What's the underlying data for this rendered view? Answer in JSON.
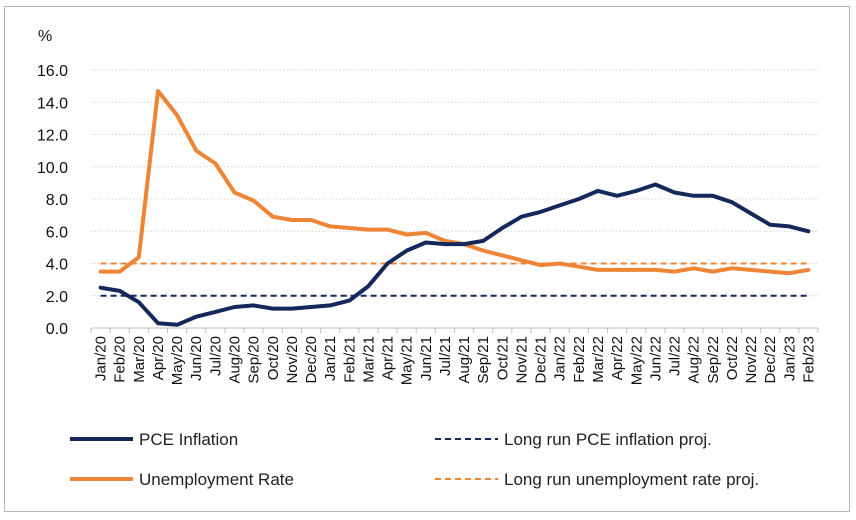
{
  "chart_data": {
    "type": "line",
    "y_unit_label": "%",
    "ylim": [
      0,
      16
    ],
    "y_ticks": [
      "0.0",
      "2.0",
      "4.0",
      "6.0",
      "8.0",
      "10.0",
      "12.0",
      "14.0",
      "16.0"
    ],
    "grid": true,
    "legend_position": "bottom",
    "categories": [
      "Jan/20",
      "Feb/20",
      "Mar/20",
      "Apr/20",
      "May/20",
      "Jun/20",
      "Jul/20",
      "Aug/20",
      "Sep/20",
      "Oct/20",
      "Nov/20",
      "Dec/20",
      "Jan/21",
      "Feb/21",
      "Mar/21",
      "Apr/21",
      "May/21",
      "Jun/21",
      "Jul/21",
      "Aug/21",
      "Sep/21",
      "Oct/21",
      "Nov/21",
      "Dec/21",
      "Jan/22",
      "Feb/22",
      "Mar/22",
      "Apr/22",
      "May/22",
      "Jun/22",
      "Jul/22",
      "Aug/22",
      "Sep/22",
      "Oct/22",
      "Nov/22",
      "Dec/22",
      "Jan/23",
      "Feb/23"
    ],
    "series": [
      {
        "name": "PCE Inflation",
        "style": "solid",
        "color": "#14285a",
        "values": [
          2.5,
          2.3,
          1.6,
          0.3,
          0.2,
          0.7,
          1.0,
          1.3,
          1.4,
          1.2,
          1.2,
          1.3,
          1.4,
          1.7,
          2.6,
          4.0,
          4.8,
          5.3,
          5.2,
          5.2,
          5.4,
          6.2,
          6.9,
          7.2,
          7.6,
          8.0,
          8.5,
          8.2,
          8.5,
          8.9,
          8.4,
          8.2,
          8.2,
          7.8,
          7.1,
          6.4,
          6.3,
          6.0
        ]
      },
      {
        "name": "Long run PCE inflation proj.",
        "style": "dashed",
        "color": "#14285a",
        "values": [
          2.0,
          2.0,
          2.0,
          2.0,
          2.0,
          2.0,
          2.0,
          2.0,
          2.0,
          2.0,
          2.0,
          2.0,
          2.0,
          2.0,
          2.0,
          2.0,
          2.0,
          2.0,
          2.0,
          2.0,
          2.0,
          2.0,
          2.0,
          2.0,
          2.0,
          2.0,
          2.0,
          2.0,
          2.0,
          2.0,
          2.0,
          2.0,
          2.0,
          2.0,
          2.0,
          2.0,
          2.0,
          2.0
        ]
      },
      {
        "name": "Unemployment Rate",
        "style": "solid",
        "color": "#ee8436",
        "values": [
          3.5,
          3.5,
          4.4,
          14.7,
          13.2,
          11.0,
          10.2,
          8.4,
          7.9,
          6.9,
          6.7,
          6.7,
          6.3,
          6.2,
          6.1,
          6.1,
          5.8,
          5.9,
          5.4,
          5.2,
          4.8,
          4.5,
          4.2,
          3.9,
          4.0,
          3.8,
          3.6,
          3.6,
          3.6,
          3.6,
          3.5,
          3.7,
          3.5,
          3.7,
          3.6,
          3.5,
          3.4,
          3.6
        ]
      },
      {
        "name": "Long run unemployment rate proj.",
        "style": "dashed",
        "color": "#ee8436",
        "values": [
          4.0,
          4.0,
          4.0,
          4.0,
          4.0,
          4.0,
          4.0,
          4.0,
          4.0,
          4.0,
          4.0,
          4.0,
          4.0,
          4.0,
          4.0,
          4.0,
          4.0,
          4.0,
          4.0,
          4.0,
          4.0,
          4.0,
          4.0,
          4.0,
          4.0,
          4.0,
          4.0,
          4.0,
          4.0,
          4.0,
          4.0,
          4.0,
          4.0,
          4.0,
          4.0,
          4.0,
          4.0,
          4.0
        ]
      }
    ]
  }
}
